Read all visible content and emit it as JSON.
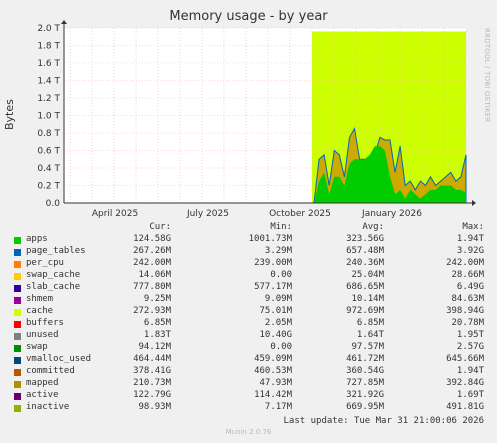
{
  "chart_data": {
    "type": "area",
    "title": "Memory usage - by year",
    "ylabel": "Bytes",
    "vertical_label": "RRDTOOL / TOBI OETIKER",
    "yticks": [
      "0.0",
      "0.2 T",
      "0.4 T",
      "0.6 T",
      "0.8 T",
      "1.0 T",
      "1.2 T",
      "1.4 T",
      "1.6 T",
      "1.8 T",
      "2.0 T"
    ],
    "ylim": [
      0,
      2.0
    ],
    "xticks": [
      "April 2025",
      "July 2025",
      "October 2025",
      "January 2026"
    ],
    "grid": true,
    "highlight_color": "#ccff00",
    "apps_color": "#00cc00",
    "committed_color": "#0066b3",
    "active_color": "#ccaa00",
    "series_approx_T": {
      "apps": [
        0,
        0.25,
        0.35,
        0.1,
        0.3,
        0.3,
        0.2,
        0.45,
        0.5,
        0.5,
        0.5,
        0.55,
        0.65,
        0.65,
        0.6,
        0.3,
        0.1,
        0.15,
        0.05,
        0.15,
        0.1,
        0.05,
        0.1,
        0.15,
        0.15,
        0.2,
        0.2,
        0.2,
        0.15,
        0.15,
        0.12
      ],
      "committed": [
        0,
        0.5,
        0.55,
        0.2,
        0.6,
        0.55,
        0.3,
        0.75,
        0.85,
        0.5,
        0.5,
        0.5,
        0.55,
        0.75,
        0.72,
        0.72,
        0.35,
        0.65,
        0.2,
        0.25,
        0.15,
        0.25,
        0.2,
        0.3,
        0.2,
        0.25,
        0.3,
        0.35,
        0.25,
        0.3,
        0.55
      ]
    }
  },
  "columns": {
    "cur": "Cur:",
    "min": "Min:",
    "avg": "Avg:",
    "max": "Max:"
  },
  "legend": [
    {
      "name": "apps",
      "color": "#00cc00",
      "cur": "124.58G",
      "min": "1001.73M",
      "avg": "323.56G",
      "max": "1.94T"
    },
    {
      "name": "page_tables",
      "color": "#0066b3",
      "cur": "267.26M",
      "min": "3.29M",
      "avg": "657.48M",
      "max": "3.92G"
    },
    {
      "name": "per_cpu",
      "color": "#ff8000",
      "cur": "242.00M",
      "min": "239.00M",
      "avg": "240.36M",
      "max": "242.00M"
    },
    {
      "name": "swap_cache",
      "color": "#ffcc00",
      "cur": "14.06M",
      "min": "0.00",
      "avg": "25.04M",
      "max": "28.66M"
    },
    {
      "name": "slab_cache",
      "color": "#330099",
      "cur": "777.80M",
      "min": "577.17M",
      "avg": "686.65M",
      "max": "6.49G"
    },
    {
      "name": "shmem",
      "color": "#990099",
      "cur": "9.25M",
      "min": "9.09M",
      "avg": "10.14M",
      "max": "84.63M"
    },
    {
      "name": "cache",
      "color": "#ccff00",
      "cur": "272.93M",
      "min": "75.01M",
      "avg": "972.69M",
      "max": "398.94G"
    },
    {
      "name": "buffers",
      "color": "#ff0000",
      "cur": "6.85M",
      "min": "2.05M",
      "avg": "6.85M",
      "max": "20.78M"
    },
    {
      "name": "unused",
      "color": "#808080",
      "cur": "1.83T",
      "min": "10.40G",
      "avg": "1.64T",
      "max": "1.95T"
    },
    {
      "name": "swap",
      "color": "#008f00",
      "cur": "94.12M",
      "min": "0.00",
      "avg": "97.57M",
      "max": "2.57G"
    },
    {
      "name": "vmalloc_used",
      "color": "#00487d",
      "cur": "464.44M",
      "min": "459.09M",
      "avg": "461.72M",
      "max": "645.66M"
    },
    {
      "name": "committed",
      "color": "#b35a00",
      "cur": "378.41G",
      "min": "460.53M",
      "avg": "360.54G",
      "max": "1.94T"
    },
    {
      "name": "mapped",
      "color": "#b38f00",
      "cur": "210.73M",
      "min": "47.93M",
      "avg": "727.85M",
      "max": "392.84G"
    },
    {
      "name": "active",
      "color": "#6b006b",
      "cur": "122.79G",
      "min": "114.42M",
      "avg": "321.92G",
      "max": "1.69T"
    },
    {
      "name": "inactive",
      "color": "#8fb300",
      "cur": "98.93M",
      "min": "7.17M",
      "avg": "669.95M",
      "max": "491.81G"
    }
  ],
  "last_update": "Last update: Tue Mar 31 21:00:06 2026",
  "footer": "Munin 2.0.76"
}
